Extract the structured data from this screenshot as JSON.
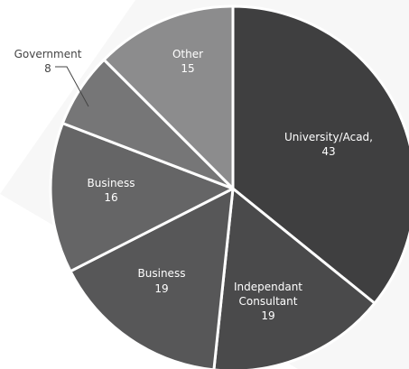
{
  "chart_data": {
    "type": "pie",
    "slices": [
      {
        "label": "University/Acad,",
        "value": 43,
        "color": "#3f3f40"
      },
      {
        "label": "Independant Consultant",
        "value": 19,
        "color": "#4a4a4b"
      },
      {
        "label": "Business",
        "value": 19,
        "color": "#575758"
      },
      {
        "label": "Business",
        "value": 16,
        "color": "#656566"
      },
      {
        "label": "Government",
        "value": 8,
        "color": "#767677"
      },
      {
        "label": "Other",
        "value": 15,
        "color": "#8c8c8d"
      }
    ],
    "legend": "none"
  }
}
